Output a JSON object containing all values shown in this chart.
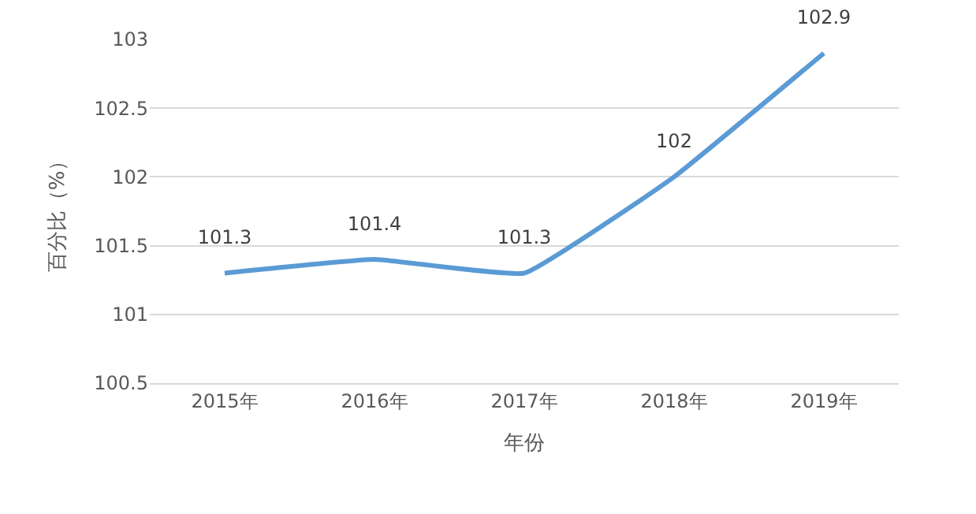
{
  "chart_data": {
    "type": "line",
    "xlabel": "年份",
    "ylabel": "百分比（%）",
    "categories": [
      "2015年",
      "2016年",
      "2017年",
      "2018年",
      "2019年"
    ],
    "series": [
      {
        "color": "#5b9bd5",
        "values": [
          101.3,
          101.4,
          101.3,
          102,
          102.9
        ]
      }
    ],
    "ylim": [
      100.5,
      103
    ],
    "yticks": [
      100.5,
      101,
      101.5,
      102,
      102.5,
      103
    ],
    "grid": "y",
    "marker": "none",
    "line_style": "solid",
    "data_labels": true
  }
}
